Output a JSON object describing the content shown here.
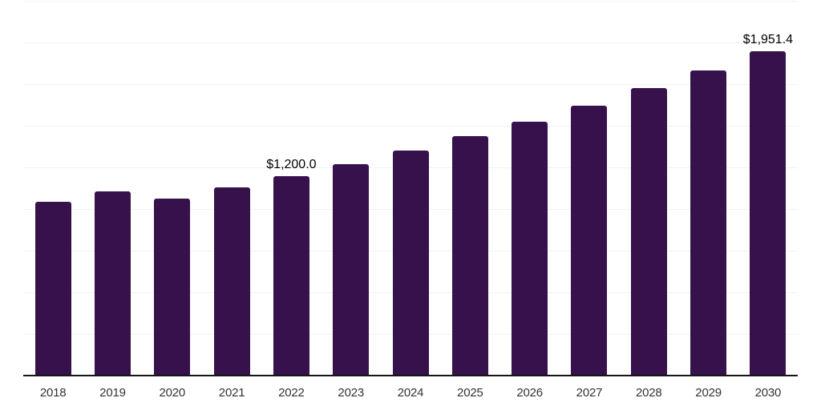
{
  "chart": {
    "background_color": "#ffffff",
    "bar_color": "#37114C",
    "gridline_color": "#f2f2f2",
    "axis_line_color": "#161616",
    "tick_label_color": "#333333",
    "data_label_color": "#000000"
  },
  "chart_data": {
    "type": "bar",
    "categories": [
      "2018",
      "2019",
      "2020",
      "2021",
      "2022",
      "2023",
      "2024",
      "2025",
      "2026",
      "2027",
      "2028",
      "2029",
      "2030"
    ],
    "values": [
      1046.0,
      1109.0,
      1066.0,
      1133.0,
      1200.0,
      1275.4,
      1355.5,
      1440.7,
      1531.2,
      1627.4,
      1729.6,
      1838.3,
      1951.4
    ],
    "data_labels": {
      "2022": "$1,200.0",
      "2030": "$1,951.4"
    },
    "xlabel": "",
    "ylabel": "",
    "ylim": [
      0,
      2250
    ],
    "grid_step": 250,
    "grid": true,
    "legend": false,
    "y_axis_labels_shown": false
  }
}
